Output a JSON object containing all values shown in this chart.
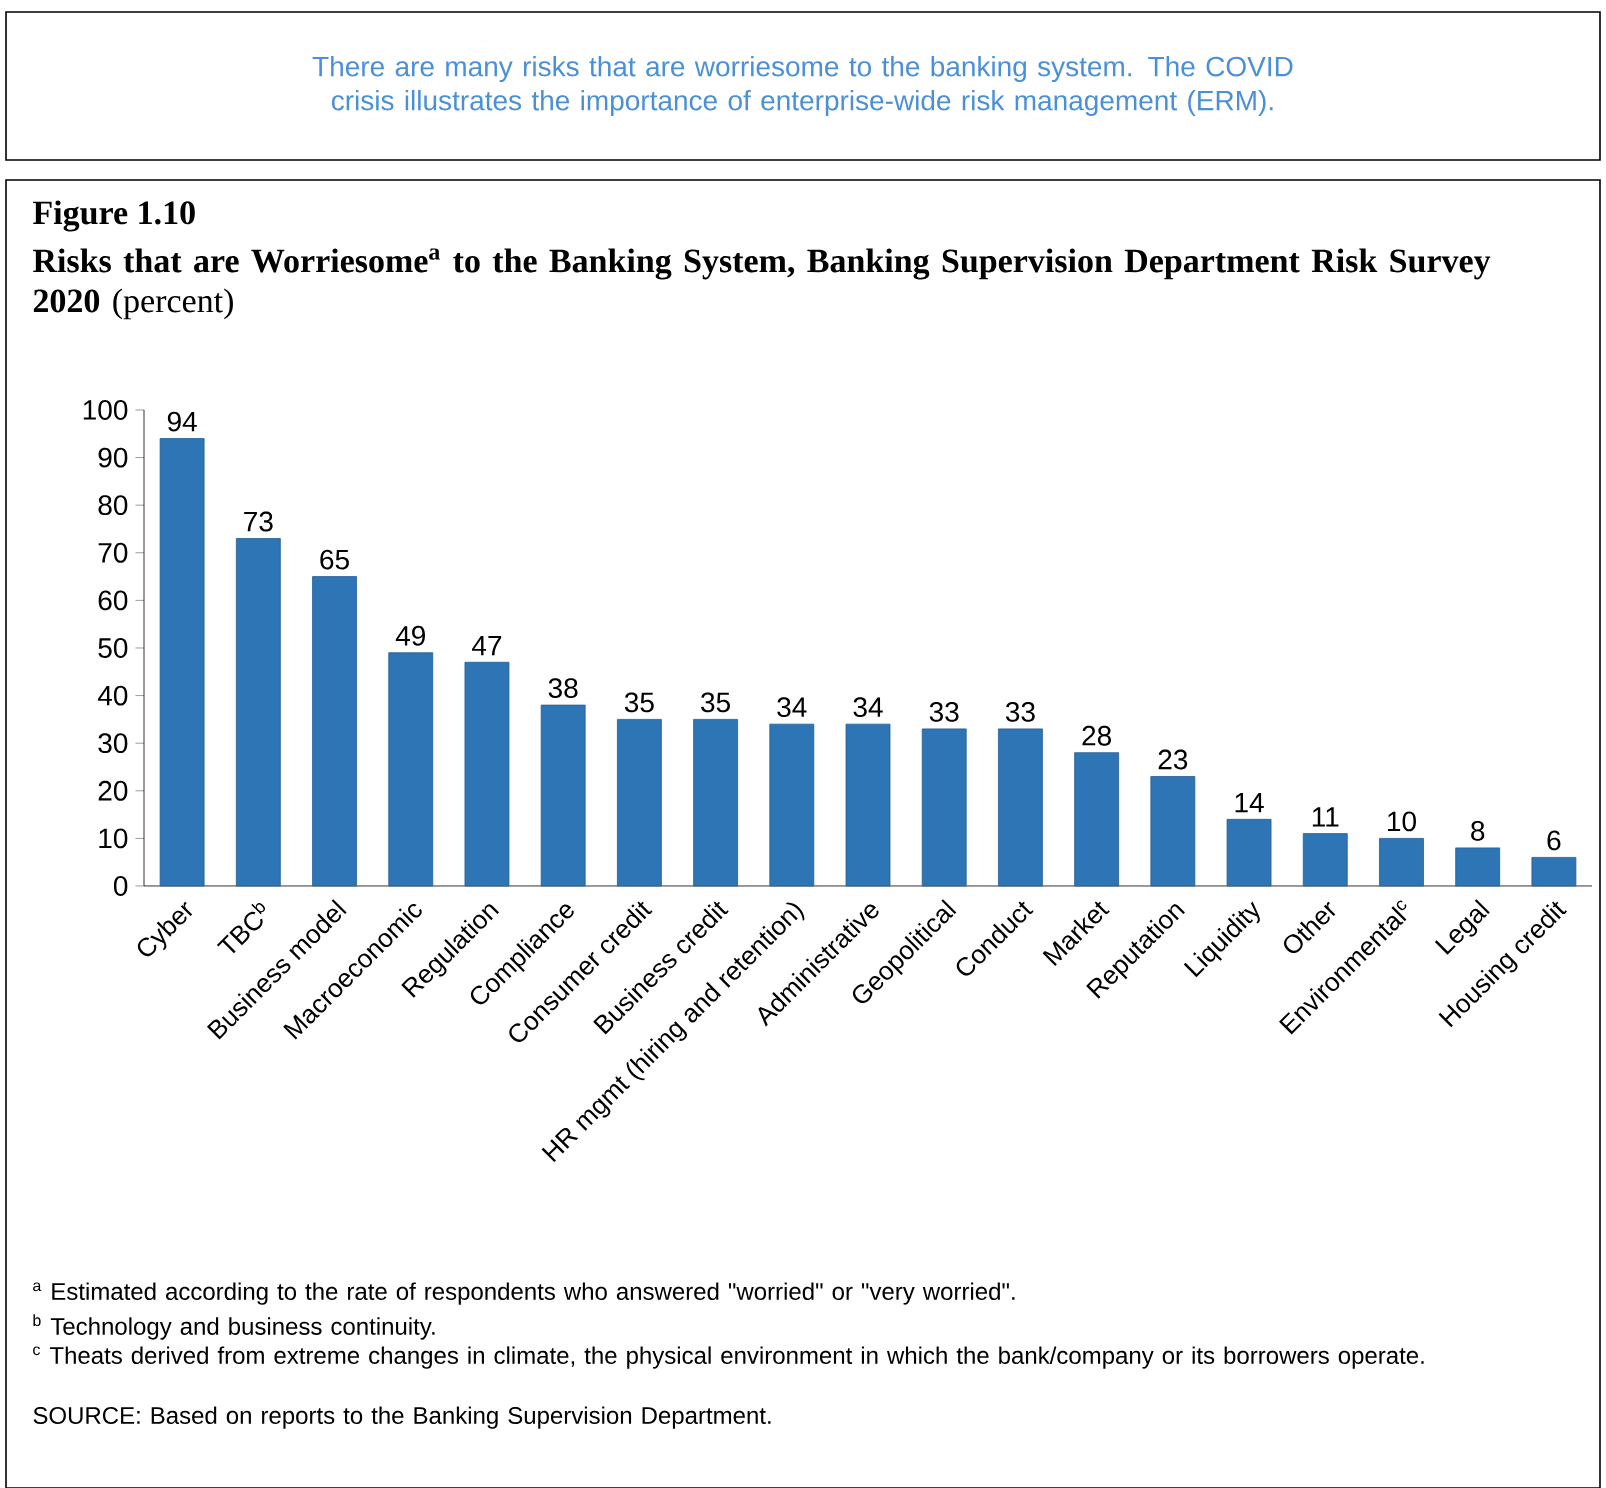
{
  "chart_data": {
    "type": "bar",
    "title": "Figure 1.10",
    "subtitle": "**Risks that are Worriesome$^{a}$ to the Banking System, Banking Supervision Department Risk Survey 2020** (percent)",
    "categories": [
      "Cyber",
      "TBC$^{b}$",
      "Business model",
      "Macroeconomic",
      "Regulation",
      "Compliance",
      "Consumer credit",
      "Business credit",
      "HR mgmt (hiring and retention)",
      "Administrative",
      "Geopolitical",
      "Conduct",
      "Market",
      "Reputation",
      "Liquidity",
      "Other",
      "Environmental$^{c}$",
      "Legal",
      "Housing credit"
    ],
    "values": [
      94,
      73,
      65,
      49,
      47,
      38,
      35,
      35,
      34,
      34,
      33,
      33,
      28,
      23,
      14,
      11,
      10,
      8,
      6
    ],
    "color": "#2e75b6",
    "data_labels": true,
    "ylim": [
      0,
      100
    ],
    "yticks": [
      0,
      10,
      20,
      30,
      40,
      50,
      60,
      70,
      80,
      90,
      100
    ],
    "grid": false,
    "annotations": [
      "There are many risks that are worriesome to the banking system. The COVID crisis illustrates the importance of enterprise-wide risk management (ERM).",
      "$^{a}$ Estimated according to the rate of respondents who answered \"worried\" or \"very worried\".",
      "$^{b}$ Technology and business continuity.",
      "$^{c}$ Theats derived from extreme changes in climate, the physical environment in which the bank/company or its borrowers operate.",
      "SOURCE: Based on reports to the Banking Supervision Department."
    ]
  }
}
